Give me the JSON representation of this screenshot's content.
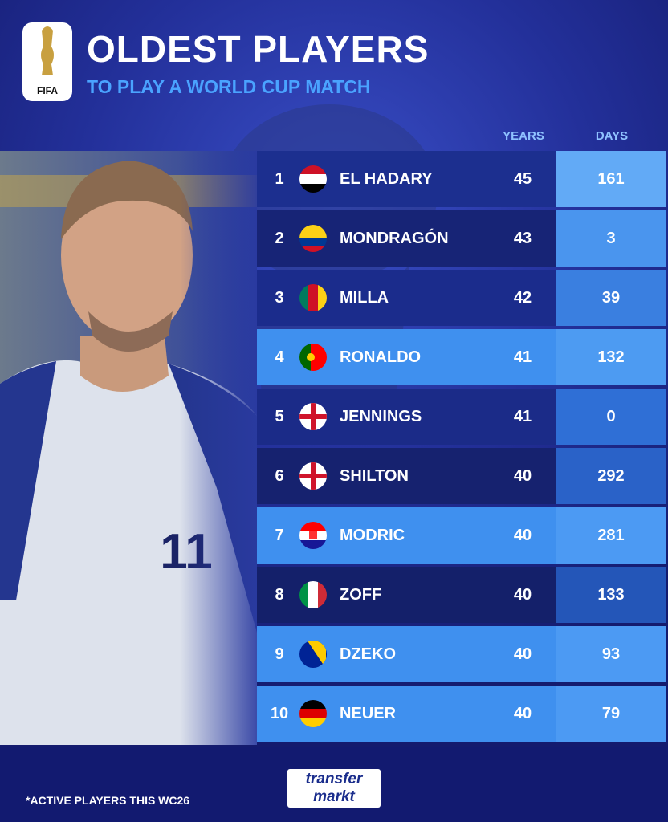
{
  "header": {
    "logo": "FIFA",
    "title": "OLDEST PLAYERS",
    "subtitle": "TO PLAY A WORLD CUP MATCH"
  },
  "table": {
    "columns": [
      "YEARS",
      "DAYS"
    ],
    "rows": [
      {
        "rank": 1,
        "name": "EL HADARY",
        "years": 45,
        "days": 161
      },
      {
        "rank": 2,
        "name": "MONDRAGÓN",
        "years": 43,
        "days": 3
      },
      {
        "rank": 3,
        "name": "MILLA",
        "years": 42,
        "days": 39
      },
      {
        "rank": 4,
        "name": "RONALDO",
        "years": 41,
        "days": 132
      },
      {
        "rank": 5,
        "name": "JENNINGS",
        "years": 41,
        "days": 0
      },
      {
        "rank": 6,
        "name": "SHILTON",
        "years": 40,
        "days": 292
      },
      {
        "rank": 7,
        "name": "MODRIC",
        "years": 40,
        "days": 281
      },
      {
        "rank": 8,
        "name": "ZOFF",
        "years": 40,
        "days": 133
      },
      {
        "rank": 9,
        "name": "DZEKO",
        "years": 40,
        "days": 93
      },
      {
        "rank": 10,
        "name": "NEUER",
        "years": 40,
        "days": 79
      }
    ]
  },
  "footer": {
    "note": "*ACTIVE PLAYERS THIS WC26",
    "brand_top": "transfer",
    "brand_bottom": "markt"
  }
}
